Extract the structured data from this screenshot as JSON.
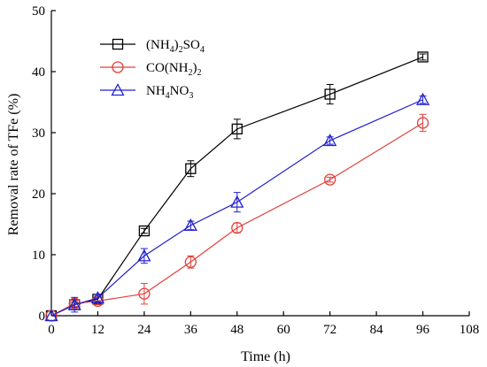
{
  "chart_data": {
    "type": "line",
    "xlabel": "Time (h)",
    "ylabel": "Removal rate of TFe (%)",
    "xlim": [
      0,
      108
    ],
    "ylim": [
      0,
      50
    ],
    "xticks": [
      "0",
      "12",
      "24",
      "36",
      "48",
      "60",
      "72",
      "84",
      "96",
      "108"
    ],
    "yticks": [
      "0",
      "10",
      "20",
      "30",
      "40",
      "50"
    ],
    "legend_position": "top-left",
    "series": [
      {
        "name": "(NH4)2SO4",
        "label_parts": [
          [
            "(NH",
            "n"
          ],
          [
            "4",
            "sub"
          ],
          [
            ")",
            "n"
          ],
          [
            "2",
            "sub"
          ],
          [
            "SO",
            "n"
          ],
          [
            "4",
            "sub"
          ]
        ],
        "color": "#000000",
        "marker": "square",
        "x": [
          0,
          6,
          12,
          24,
          36,
          48,
          72,
          96
        ],
        "y": [
          0,
          1.8,
          2.7,
          13.9,
          24.1,
          30.6,
          36.3,
          42.4
        ],
        "err": [
          0,
          0.4,
          0.5,
          0.4,
          1.3,
          1.6,
          1.6,
          0.5
        ]
      },
      {
        "name": "CO(NH2)2",
        "label_parts": [
          [
            "CO(NH",
            "n"
          ],
          [
            "2",
            "sub"
          ],
          [
            ")",
            "n"
          ],
          [
            "2",
            "sub"
          ]
        ],
        "color": "#e0403a",
        "marker": "circle",
        "x": [
          0,
          6,
          12,
          24,
          36,
          48,
          72,
          96
        ],
        "y": [
          0,
          2.0,
          2.4,
          3.6,
          8.8,
          14.4,
          22.3,
          31.6
        ],
        "err": [
          0,
          0.5,
          0.6,
          1.7,
          1.0,
          0.8,
          0.4,
          1.4
        ]
      },
      {
        "name": "NH4NO3",
        "label_parts": [
          [
            "NH",
            "n"
          ],
          [
            "4",
            "sub"
          ],
          [
            "NO",
            "n"
          ],
          [
            "3",
            "sub"
          ]
        ],
        "color": "#2020d0",
        "marker": "triangle",
        "x": [
          0,
          6,
          12,
          24,
          36,
          48,
          72,
          96
        ],
        "y": [
          0,
          1.8,
          2.9,
          9.8,
          14.8,
          18.6,
          28.7,
          35.4
        ],
        "err": [
          0,
          1.2,
          0.6,
          1.2,
          0.7,
          1.6,
          0.6,
          0.6
        ]
      }
    ]
  }
}
